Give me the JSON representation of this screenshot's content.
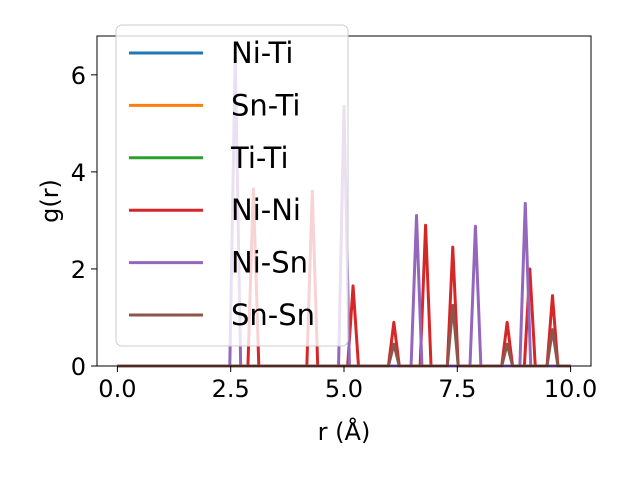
{
  "chart_data": {
    "type": "line",
    "xlabel": "r (Å)",
    "ylabel": "g(r)",
    "xlim": [
      -0.45,
      10.45
    ],
    "ylim": [
      0,
      6.8
    ],
    "xticks": [
      "0.0",
      "2.5",
      "5.0",
      "7.5",
      "10.0"
    ],
    "yticks": [
      "0",
      "2",
      "4",
      "6"
    ],
    "legend_position": "upper-left",
    "series": [
      {
        "name": "Ni-Ti",
        "color": "#1f77b4",
        "x": [
          0,
          10
        ],
        "y": [
          0,
          0
        ]
      },
      {
        "name": "Sn-Ti",
        "color": "#ff7f0e",
        "x": [
          0,
          10
        ],
        "y": [
          0,
          0
        ]
      },
      {
        "name": "Ti-Ti",
        "color": "#2ca02c",
        "x": [
          0,
          10
        ],
        "y": [
          0,
          0
        ]
      },
      {
        "name": "Ni-Ni",
        "color": "#d62728",
        "peaks": [
          [
            3.0,
            3.65
          ],
          [
            4.3,
            3.6
          ],
          [
            5.2,
            1.65
          ],
          [
            6.1,
            0.9
          ],
          [
            6.8,
            2.9
          ],
          [
            7.4,
            2.45
          ],
          [
            8.6,
            0.9
          ],
          [
            9.1,
            2.0
          ],
          [
            9.6,
            1.45
          ]
        ]
      },
      {
        "name": "Ni-Sn",
        "color": "#9467bd",
        "peaks": [
          [
            2.6,
            6.4
          ],
          [
            5.0,
            5.35
          ],
          [
            6.6,
            3.1
          ],
          [
            7.9,
            2.88
          ],
          [
            9.0,
            3.35
          ]
        ]
      },
      {
        "name": "Sn-Sn",
        "color": "#8c564b",
        "peaks": [
          [
            6.1,
            0.45
          ],
          [
            7.4,
            1.25
          ],
          [
            8.6,
            0.45
          ],
          [
            9.6,
            0.75
          ]
        ]
      }
    ]
  }
}
